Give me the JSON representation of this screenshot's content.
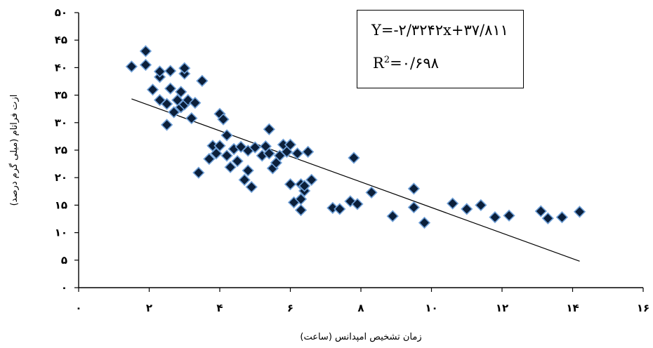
{
  "chart_data": {
    "type": "scatter",
    "xlabel": "زمان تشخیص امپدانس (ساعت)",
    "ylabel": "ازت فراتام (میلی گرم درصد)",
    "xlim": [
      0,
      16
    ],
    "ylim": [
      0,
      50
    ],
    "x_ticks": [
      0,
      2,
      4,
      6,
      8,
      10,
      12,
      14,
      16
    ],
    "x_tick_labels": [
      "۰",
      "۲",
      "۴",
      "۶",
      "۸",
      "۱۰",
      "۱۲",
      "۱۴",
      "۱۶"
    ],
    "y_ticks": [
      0,
      5,
      10,
      15,
      20,
      25,
      30,
      35,
      40,
      45,
      50
    ],
    "y_tick_labels": [
      "۰",
      "۵",
      "۱۰",
      "۱۵",
      "۲۰",
      "۲۵",
      "۳۰",
      "۳۵",
      "۴۰",
      "۴۵",
      "۵۰"
    ],
    "grid": false,
    "series": [
      {
        "marker": "diamond",
        "marker_color": "#0b1f3a",
        "marker_edge_color": "#6fa0d8",
        "points": [
          [
            1.5,
            40.2
          ],
          [
            1.9,
            43.0
          ],
          [
            1.9,
            40.5
          ],
          [
            2.1,
            36.0
          ],
          [
            2.3,
            38.3
          ],
          [
            2.3,
            39.3
          ],
          [
            2.3,
            34.1
          ],
          [
            2.5,
            33.4
          ],
          [
            2.5,
            29.6
          ],
          [
            2.6,
            39.4
          ],
          [
            2.6,
            36.2
          ],
          [
            2.7,
            31.9
          ],
          [
            2.8,
            34.1
          ],
          [
            2.9,
            35.6
          ],
          [
            2.9,
            32.8
          ],
          [
            3.0,
            38.9
          ],
          [
            3.0,
            39.9
          ],
          [
            3.0,
            33.3
          ],
          [
            3.1,
            34.1
          ],
          [
            3.2,
            30.8
          ],
          [
            3.3,
            33.6
          ],
          [
            3.4,
            20.9
          ],
          [
            3.5,
            37.6
          ],
          [
            3.7,
            23.4
          ],
          [
            3.8,
            25.8
          ],
          [
            3.9,
            24.4
          ],
          [
            4.0,
            25.8
          ],
          [
            4.0,
            31.6
          ],
          [
            4.1,
            30.6
          ],
          [
            4.2,
            27.7
          ],
          [
            4.2,
            24.0
          ],
          [
            4.3,
            21.9
          ],
          [
            4.4,
            25.2
          ],
          [
            4.5,
            23.0
          ],
          [
            4.6,
            25.6
          ],
          [
            4.7,
            19.6
          ],
          [
            4.8,
            24.9
          ],
          [
            4.8,
            21.3
          ],
          [
            4.9,
            18.3
          ],
          [
            5.0,
            25.5
          ],
          [
            5.2,
            24.0
          ],
          [
            5.3,
            25.7
          ],
          [
            5.4,
            24.4
          ],
          [
            5.4,
            28.8
          ],
          [
            5.5,
            21.7
          ],
          [
            5.6,
            22.7
          ],
          [
            5.7,
            24.0
          ],
          [
            5.8,
            26.0
          ],
          [
            5.9,
            24.7
          ],
          [
            6.0,
            26.0
          ],
          [
            6.0,
            18.8
          ],
          [
            6.1,
            15.5
          ],
          [
            6.2,
            24.4
          ],
          [
            6.3,
            18.8
          ],
          [
            6.3,
            16.1
          ],
          [
            6.3,
            14.1
          ],
          [
            6.4,
            17.6
          ],
          [
            6.4,
            18.5
          ],
          [
            6.5,
            24.7
          ],
          [
            6.6,
            19.6
          ],
          [
            7.2,
            14.5
          ],
          [
            7.4,
            14.3
          ],
          [
            7.7,
            15.7
          ],
          [
            7.8,
            23.6
          ],
          [
            7.9,
            15.2
          ],
          [
            8.3,
            17.3
          ],
          [
            8.9,
            13.0
          ],
          [
            9.5,
            18.0
          ],
          [
            9.5,
            14.6
          ],
          [
            9.8,
            11.8
          ],
          [
            10.6,
            15.3
          ],
          [
            11.0,
            14.3
          ],
          [
            11.4,
            15.0
          ],
          [
            11.8,
            12.8
          ],
          [
            12.2,
            13.1
          ],
          [
            13.1,
            13.9
          ],
          [
            13.3,
            12.6
          ],
          [
            13.7,
            12.8
          ],
          [
            14.2,
            13.8
          ]
        ]
      }
    ],
    "trendline": {
      "type": "linear",
      "x_range": [
        1.5,
        14.2
      ],
      "slope": -2.3242,
      "intercept": 37.811,
      "color": "#000000"
    },
    "annotation": {
      "equation": "Y=-۲/۳۲۴۲x+۳۷/۸۱۱",
      "r2_label": "R",
      "r2_sup": "2",
      "r2_value": "=۰/۶۹۸"
    }
  }
}
